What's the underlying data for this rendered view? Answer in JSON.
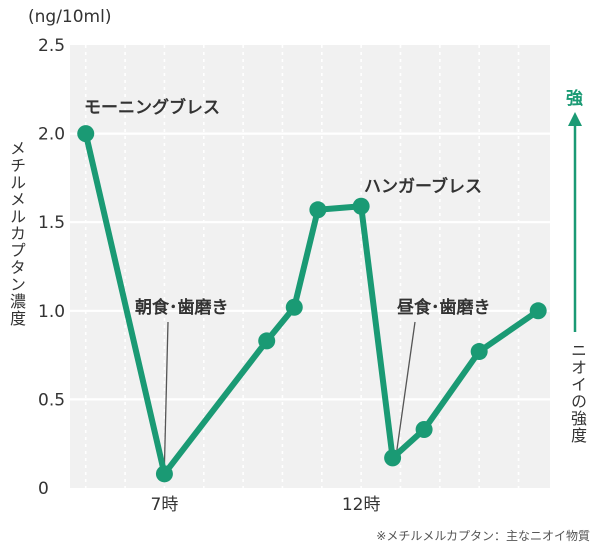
{
  "chart_data": {
    "type": "line",
    "unit_label": "(ng/10ml)",
    "ylabel": "メチルメルカプタン濃度",
    "ylim": [
      0,
      2.5
    ],
    "y_ticks": [
      "2.5",
      "2.0",
      "1.5",
      "1.0",
      "0.5",
      "0"
    ],
    "y_tick_values": [
      2.5,
      2.0,
      1.5,
      1.0,
      0.5,
      0
    ],
    "x_tick_labels": [
      {
        "x": 7,
        "label": "7時"
      },
      {
        "x": 12,
        "label": "12時"
      }
    ],
    "xlim": [
      4.6,
      16.8
    ],
    "grid": true,
    "series": [
      {
        "color": "#1a9a74",
        "points": [
          {
            "x": 5.0,
            "y": 2.0
          },
          {
            "x": 7.0,
            "y": 0.08
          },
          {
            "x": 9.6,
            "y": 0.83
          },
          {
            "x": 10.3,
            "y": 1.02
          },
          {
            "x": 10.9,
            "y": 1.57
          },
          {
            "x": 12.0,
            "y": 1.59
          },
          {
            "x": 12.8,
            "y": 0.17
          },
          {
            "x": 13.6,
            "y": 0.33
          },
          {
            "x": 15.0,
            "y": 0.77
          },
          {
            "x": 16.5,
            "y": 1.0
          }
        ]
      }
    ],
    "annotations": {
      "morning": "モーニングブレス",
      "hunger": "ハンガーブレス",
      "breakfast": "朝食･歯磨き",
      "lunch": "昼食･歯磨き"
    },
    "right_axis": {
      "strong_label": "強",
      "caption": "ニオイの強度",
      "color": "#1a9a74"
    },
    "footnote": "※メチルメルカプタン：主なニオイ物質"
  }
}
